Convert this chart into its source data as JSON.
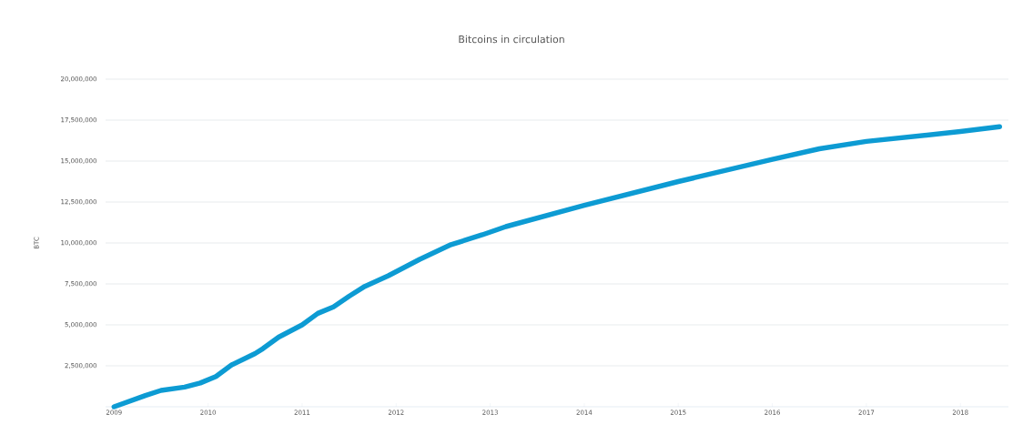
{
  "chart_data": {
    "type": "line",
    "title": "Bitcoins in circulation",
    "ylabel": "BTC",
    "x": [
      "2009-01",
      "2009-05",
      "2009-07",
      "2009-10",
      "2009-12",
      "2010-02",
      "2010-04",
      "2010-07",
      "2010-08",
      "2010-10",
      "2011-01",
      "2011-03",
      "2011-05",
      "2011-07",
      "2011-09",
      "2011-12",
      "2012-04",
      "2012-08",
      "2012-12",
      "2013-03",
      "2014-01",
      "2015-01",
      "2016-01",
      "2016-07",
      "2017-01",
      "2018-01",
      "2018-06"
    ],
    "series": [
      {
        "color": "#0d9bd3",
        "values": [
          0,
          690000,
          1000000,
          1200000,
          1450000,
          1850000,
          2550000,
          3250000,
          3550000,
          4250000,
          5000000,
          5700000,
          6100000,
          6750000,
          7350000,
          8000000,
          9000000,
          9900000,
          10500000,
          11000000,
          12300000,
          13750000,
          15100000,
          15750000,
          16200000,
          16800000,
          17100000
        ]
      }
    ],
    "xlim": [
      "2008-11-29",
      "2018-07-05"
    ],
    "xticks": [
      "2009",
      "2010",
      "2011",
      "2012",
      "2013",
      "2014",
      "2015",
      "2016",
      "2017",
      "2018"
    ],
    "ylim": [
      0,
      20000000
    ],
    "yticks": [
      {
        "value": 2500000,
        "label": "2,500,000"
      },
      {
        "value": 5000000,
        "label": "5,000,000"
      },
      {
        "value": 7500000,
        "label": "7,500,000"
      },
      {
        "value": 10000000,
        "label": "10,000,000"
      },
      {
        "value": 12500000,
        "label": "12,500,000"
      },
      {
        "value": 15000000,
        "label": "15,000,000"
      },
      {
        "value": 17500000,
        "label": "17,500,000"
      },
      {
        "value": 20000000,
        "label": "20,000,000"
      }
    ],
    "grid": "y",
    "marker": "none",
    "line_style": "solid"
  }
}
